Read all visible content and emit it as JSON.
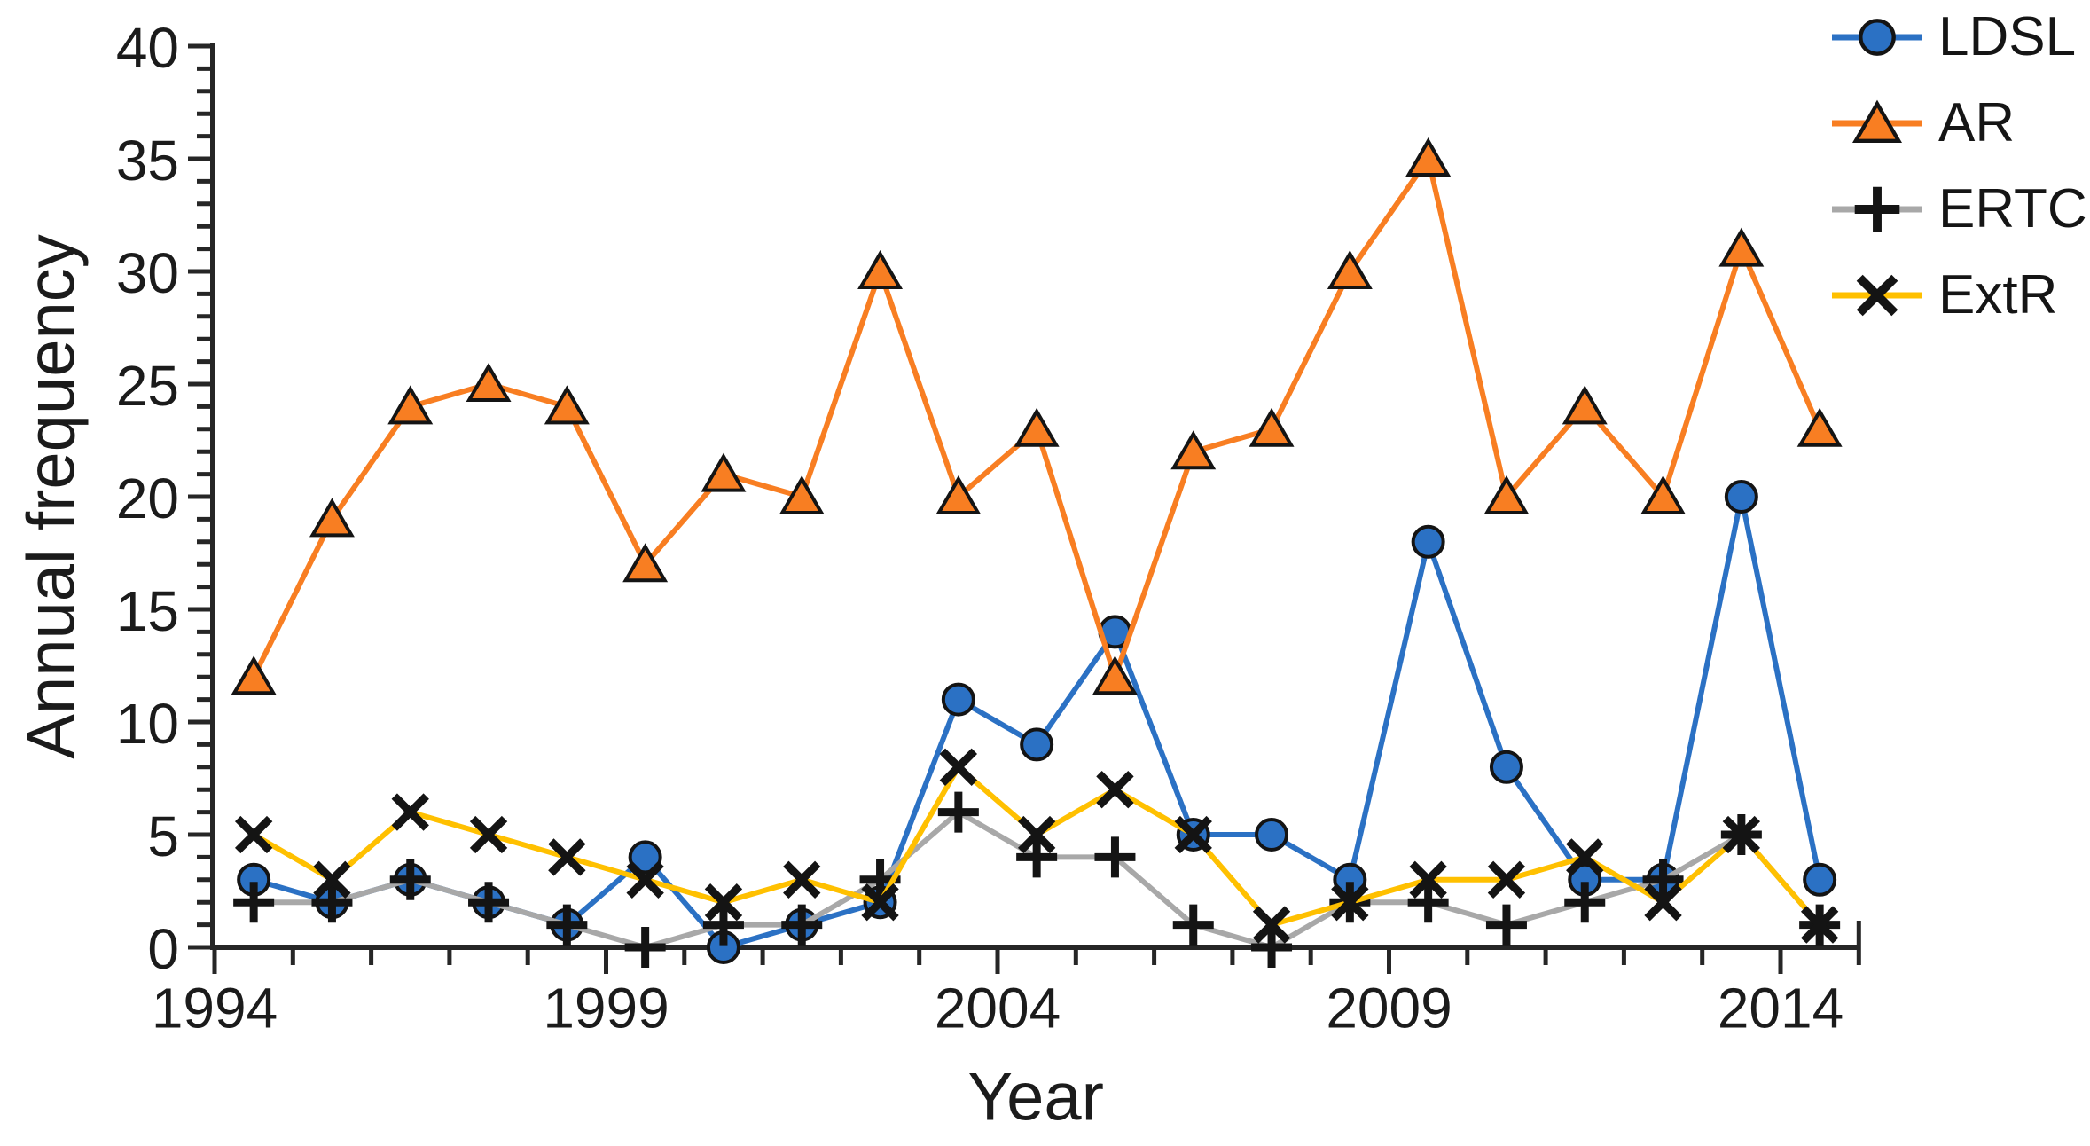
{
  "chart_data": {
    "type": "line",
    "title": "",
    "xlabel": "Year",
    "ylabel": "Annual frequency",
    "x": [
      1994,
      1995,
      1996,
      1997,
      1998,
      1999,
      2000,
      2001,
      2002,
      2003,
      2004,
      2005,
      2006,
      2007,
      2008,
      2009,
      2010,
      2011,
      2012,
      2013,
      2014
    ],
    "x_tick_labels": [
      "1994",
      "1999",
      "2004",
      "2009",
      "2014"
    ],
    "x_major_tick_indices": [
      0,
      5,
      10,
      15,
      20
    ],
    "x_minor_ticks_per_year": 1,
    "ylim": [
      0,
      40
    ],
    "y_major_step": 5,
    "y_minor_step": 1,
    "y_tick_labels": [
      "0",
      "5",
      "10",
      "15",
      "20",
      "25",
      "30",
      "35",
      "40"
    ],
    "grid": "off",
    "legend_position": "top-right",
    "axis_color": "#262626",
    "text_color": "#1b1b1b",
    "series": [
      {
        "name": "LDSL",
        "marker": "circle",
        "color": "#2B71C4",
        "marker_fill": "#2B71C4",
        "marker_stroke": "#141414",
        "values": [
          3,
          2,
          3,
          2,
          1,
          4,
          0,
          1,
          2,
          11,
          9,
          14,
          5,
          5,
          3,
          18,
          8,
          3,
          3,
          20,
          3
        ]
      },
      {
        "name": "AR",
        "marker": "triangle",
        "color": "#F87E22",
        "marker_fill": "#F87E22",
        "marker_stroke": "#141414",
        "values": [
          12,
          19,
          24,
          25,
          24,
          17,
          21,
          20,
          30,
          20,
          23,
          12,
          22,
          23,
          30,
          35,
          20,
          24,
          20,
          31,
          23
        ]
      },
      {
        "name": "ERTC",
        "marker": "plus",
        "color": "#A8A8A8",
        "marker_fill": "#141414",
        "marker_stroke": "#141414",
        "values": [
          2,
          2,
          3,
          2,
          1,
          0,
          1,
          1,
          3,
          6,
          4,
          4,
          1,
          0,
          2,
          2,
          1,
          2,
          3,
          5,
          1
        ]
      },
      {
        "name": "ExtR",
        "marker": "x",
        "color": "#FFC000",
        "marker_fill": "#141414",
        "marker_stroke": "#141414",
        "values": [
          5,
          3,
          6,
          5,
          4,
          3,
          2,
          3,
          2,
          8,
          5,
          7,
          5,
          1,
          2,
          3,
          3,
          4,
          2,
          5,
          1
        ]
      }
    ]
  }
}
